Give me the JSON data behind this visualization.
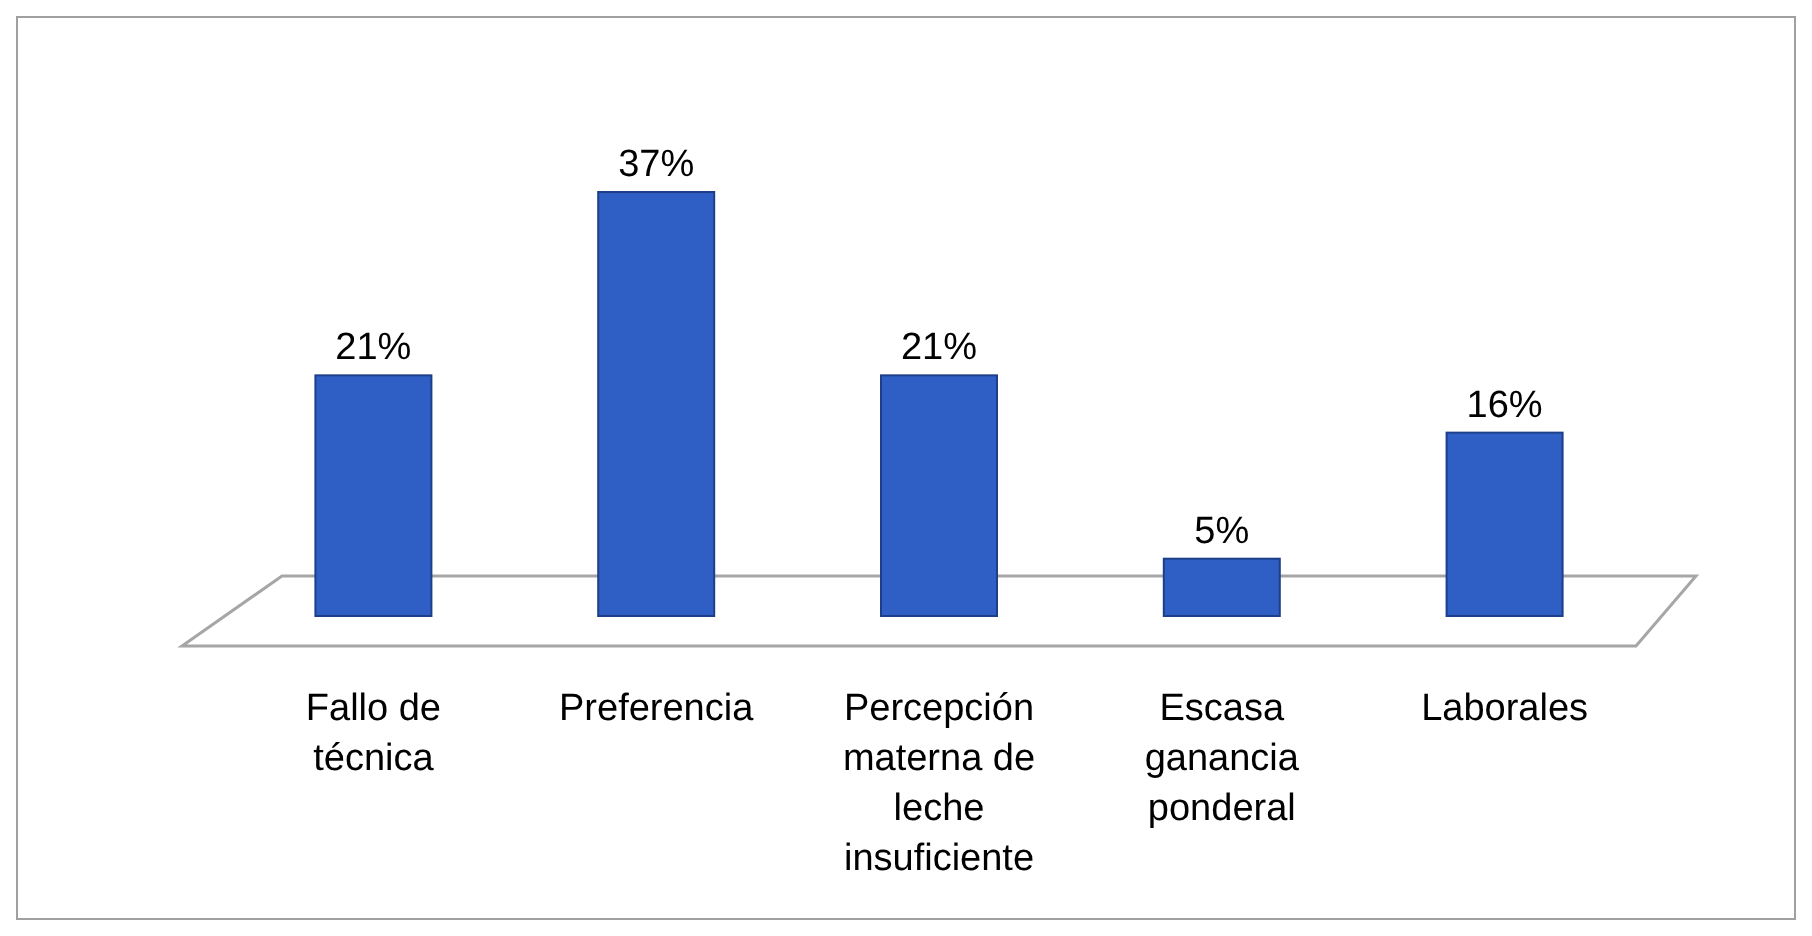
{
  "chart_data": {
    "type": "bar",
    "categories": [
      "Fallo de técnica",
      "Preferencia",
      "Percepción materna de leche insuficiente",
      "Escasa ganancia ponderal",
      "Laborales"
    ],
    "values": [
      21,
      37,
      21,
      5,
      16
    ],
    "value_labels": [
      "21%",
      "37%",
      "21%",
      "5%",
      "16%"
    ],
    "color": "#2f5fc4"
  }
}
